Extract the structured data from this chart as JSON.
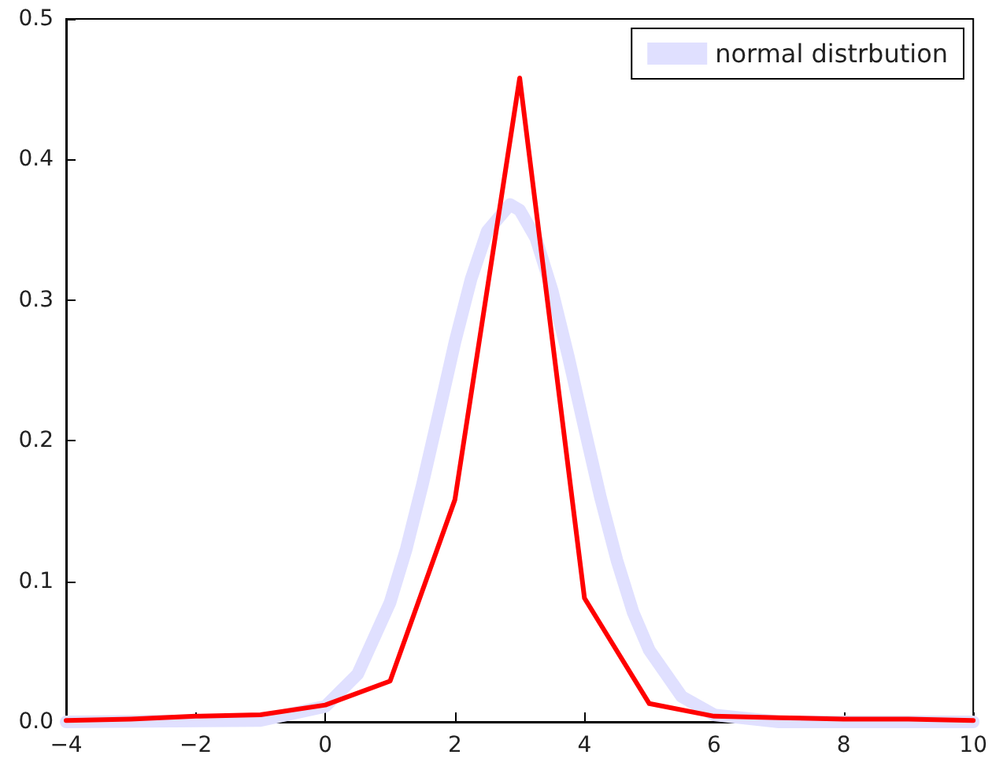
{
  "chart_data": {
    "type": "line",
    "xlim": [
      -4,
      10
    ],
    "ylim": [
      0,
      0.5
    ],
    "xticks": [
      {
        "value": -4,
        "label": "−4"
      },
      {
        "value": -2,
        "label": "−2"
      },
      0,
      2,
      4,
      6,
      8,
      10
    ],
    "yticks": [
      {
        "value": 0,
        "label": "0.0"
      },
      0.1,
      0.2,
      0.3,
      0.4,
      0.5
    ],
    "grid": false,
    "legend": "top right",
    "marker": "none",
    "line_style": "solid",
    "series": [
      {
        "color": "#ff0000",
        "x": [
          -4,
          -3,
          -2,
          -1,
          0,
          1,
          2,
          3,
          4,
          5,
          6,
          7,
          8,
          9,
          10
        ],
        "values": [
          0.001,
          0.002,
          0.004,
          0.005,
          0.012,
          0.029,
          0.158,
          0.458,
          0.088,
          0.013,
          0.004,
          0.003,
          0.002,
          0.002,
          0.001
        ]
      },
      {
        "name": "normal distrbution",
        "color": "#e0e0ff",
        "x": [
          -4,
          -1,
          0,
          0.5,
          1,
          1.25,
          1.5,
          1.75,
          2,
          2.25,
          2.5,
          2.85,
          3,
          3.25,
          3.5,
          3.75,
          4,
          4.25,
          4.5,
          4.75,
          5,
          5.5,
          6,
          7,
          10
        ],
        "values": [
          0,
          0.001,
          0.011,
          0.034,
          0.085,
          0.123,
          0.169,
          0.219,
          0.27,
          0.315,
          0.349,
          0.368,
          0.364,
          0.344,
          0.307,
          0.26,
          0.209,
          0.159,
          0.115,
          0.078,
          0.051,
          0.018,
          0.005,
          0,
          0
        ]
      }
    ]
  }
}
